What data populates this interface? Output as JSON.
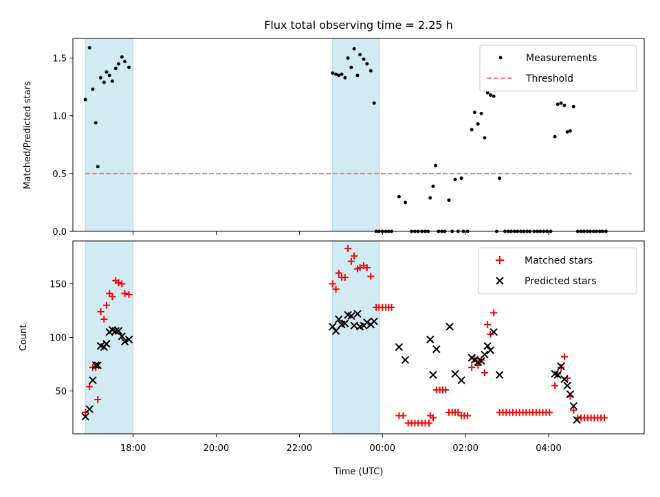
{
  "chart_data": [
    {
      "type": "scatter",
      "title": "Flux total observing time = 2.25 h",
      "xlabel": "",
      "ylabel": "Matched/Predicted stars",
      "xlim": [
        16.55,
        30.3
      ],
      "ylim": [
        0.0,
        1.67
      ],
      "yticks": [
        0.0,
        0.5,
        1.0,
        1.5
      ],
      "ytick_labels": [
        "0.0",
        "0.5",
        "1.0",
        "1.5"
      ],
      "threshold": {
        "name": "Threshold",
        "value": 0.5,
        "x_range": [
          16.85,
          30.0
        ],
        "color": "#f08080"
      },
      "shaded_regions": [
        [
          16.85,
          18.0
        ],
        [
          22.8,
          23.93
        ]
      ],
      "shade_color": "#add8e6",
      "legend": [
        {
          "name": "Measurements",
          "marker": "dot",
          "color": "#000000"
        },
        {
          "name": "Threshold",
          "marker": "dashed-line",
          "color": "#f08080"
        }
      ],
      "series": [
        {
          "name": "Measurements",
          "color": "#000000",
          "points": [
            [
              16.85,
              1.14
            ],
            [
              16.95,
              1.59
            ],
            [
              17.03,
              1.23
            ],
            [
              17.1,
              0.94
            ],
            [
              17.15,
              0.56
            ],
            [
              17.22,
              1.33
            ],
            [
              17.3,
              1.29
            ],
            [
              17.36,
              1.38
            ],
            [
              17.43,
              1.35
            ],
            [
              17.5,
              1.3
            ],
            [
              17.58,
              1.41
            ],
            [
              17.65,
              1.45
            ],
            [
              17.73,
              1.51
            ],
            [
              17.8,
              1.47
            ],
            [
              17.9,
              1.42
            ],
            [
              22.8,
              1.37
            ],
            [
              22.88,
              1.36
            ],
            [
              22.95,
              1.35
            ],
            [
              23.02,
              1.36
            ],
            [
              23.1,
              1.33
            ],
            [
              23.17,
              1.5
            ],
            [
              23.25,
              1.42
            ],
            [
              23.32,
              1.58
            ],
            [
              23.4,
              1.35
            ],
            [
              23.46,
              1.53
            ],
            [
              23.55,
              1.49
            ],
            [
              23.63,
              1.45
            ],
            [
              23.72,
              1.39
            ],
            [
              23.8,
              1.11
            ],
            [
              23.85,
              0.0
            ],
            [
              23.92,
              0.0
            ],
            [
              24.0,
              0.0
            ],
            [
              24.08,
              0.0
            ],
            [
              24.15,
              0.0
            ],
            [
              24.22,
              0.0
            ],
            [
              24.4,
              0.3
            ],
            [
              24.55,
              0.25
            ],
            [
              24.7,
              0.0
            ],
            [
              24.78,
              0.0
            ],
            [
              24.86,
              0.0
            ],
            [
              24.95,
              0.0
            ],
            [
              25.03,
              0.0
            ],
            [
              25.1,
              0.0
            ],
            [
              25.15,
              0.29
            ],
            [
              25.22,
              0.39
            ],
            [
              25.28,
              0.57
            ],
            [
              25.35,
              0.0
            ],
            [
              25.43,
              0.0
            ],
            [
              25.5,
              0.0
            ],
            [
              25.6,
              0.27
            ],
            [
              25.68,
              0.0
            ],
            [
              25.75,
              0.45
            ],
            [
              25.82,
              0.0
            ],
            [
              25.9,
              0.46
            ],
            [
              25.95,
              0.0
            ],
            [
              26.05,
              0.0
            ],
            [
              26.15,
              0.88
            ],
            [
              26.22,
              1.03
            ],
            [
              26.3,
              0.93
            ],
            [
              26.38,
              1.02
            ],
            [
              26.46,
              0.81
            ],
            [
              26.53,
              1.2
            ],
            [
              26.6,
              1.18
            ],
            [
              26.68,
              1.17
            ],
            [
              26.75,
              0.0
            ],
            [
              26.82,
              0.46
            ],
            [
              26.95,
              0.0
            ],
            [
              27.03,
              0.0
            ],
            [
              27.1,
              0.0
            ],
            [
              27.18,
              0.0
            ],
            [
              27.25,
              0.0
            ],
            [
              27.33,
              0.0
            ],
            [
              27.4,
              0.0
            ],
            [
              27.48,
              0.0
            ],
            [
              27.55,
              0.0
            ],
            [
              27.65,
              0.0
            ],
            [
              27.73,
              0.0
            ],
            [
              27.8,
              0.0
            ],
            [
              27.88,
              0.0
            ],
            [
              27.96,
              0.0
            ],
            [
              28.05,
              0.0
            ],
            [
              28.15,
              0.82
            ],
            [
              28.22,
              1.1
            ],
            [
              28.3,
              1.11
            ],
            [
              28.38,
              1.09
            ],
            [
              28.45,
              0.86
            ],
            [
              28.52,
              0.87
            ],
            [
              28.6,
              1.08
            ],
            [
              28.7,
              0.0
            ],
            [
              28.78,
              0.0
            ],
            [
              28.85,
              0.0
            ],
            [
              28.93,
              0.0
            ],
            [
              29.0,
              0.0
            ],
            [
              29.08,
              0.0
            ],
            [
              29.15,
              0.0
            ],
            [
              29.23,
              0.0
            ],
            [
              29.3,
              0.0
            ],
            [
              29.38,
              0.0
            ]
          ]
        }
      ]
    },
    {
      "type": "scatter",
      "title": "",
      "xlabel": "Time (UTC)",
      "ylabel": "Count",
      "xlim": [
        16.55,
        30.3
      ],
      "ylim": [
        10,
        190
      ],
      "xticks": [
        18,
        20,
        22,
        24,
        26,
        28
      ],
      "xtick_labels": [
        "18:00",
        "20:00",
        "22:00",
        "00:00",
        "02:00",
        "04:00"
      ],
      "yticks": [
        50,
        100,
        150
      ],
      "ytick_labels": [
        "50",
        "100",
        "150"
      ],
      "shaded_regions": [
        [
          16.85,
          18.0
        ],
        [
          22.8,
          23.93
        ]
      ],
      "shade_color": "#add8e6",
      "legend": [
        {
          "name": "Matched stars",
          "marker": "plus",
          "color": "#ff0000"
        },
        {
          "name": "Predicted stars",
          "marker": "x",
          "color": "#000000"
        }
      ],
      "series": [
        {
          "name": "Matched stars",
          "marker": "plus",
          "color": "#ff0000",
          "points": [
            [
              16.85,
              30
            ],
            [
              16.95,
              54
            ],
            [
              17.03,
              72
            ],
            [
              17.1,
              72
            ],
            [
              17.15,
              42
            ],
            [
              17.22,
              124
            ],
            [
              17.3,
              117
            ],
            [
              17.36,
              130
            ],
            [
              17.43,
              141
            ],
            [
              17.5,
              138
            ],
            [
              17.58,
              153
            ],
            [
              17.65,
              151
            ],
            [
              17.73,
              150
            ],
            [
              17.8,
              141
            ],
            [
              17.9,
              140
            ],
            [
              22.8,
              150
            ],
            [
              22.88,
              145
            ],
            [
              22.95,
              160
            ],
            [
              23.02,
              156
            ],
            [
              23.1,
              156
            ],
            [
              23.17,
              183
            ],
            [
              23.25,
              171
            ],
            [
              23.32,
              176
            ],
            [
              23.4,
              164
            ],
            [
              23.46,
              165
            ],
            [
              23.55,
              167
            ],
            [
              23.63,
              165
            ],
            [
              23.72,
              157
            ],
            [
              23.85,
              128
            ],
            [
              23.92,
              128
            ],
            [
              24.0,
              128
            ],
            [
              24.08,
              128
            ],
            [
              24.15,
              128
            ],
            [
              24.22,
              128
            ],
            [
              24.4,
              27
            ],
            [
              24.5,
              27
            ],
            [
              24.62,
              20
            ],
            [
              24.7,
              20
            ],
            [
              24.78,
              20
            ],
            [
              24.86,
              20
            ],
            [
              24.95,
              20
            ],
            [
              25.03,
              20
            ],
            [
              25.12,
              20
            ],
            [
              25.15,
              27
            ],
            [
              25.22,
              25
            ],
            [
              25.3,
              51
            ],
            [
              25.38,
              51
            ],
            [
              25.45,
              51
            ],
            [
              25.52,
              51
            ],
            [
              25.6,
              30
            ],
            [
              25.68,
              30
            ],
            [
              25.75,
              30
            ],
            [
              25.82,
              30
            ],
            [
              25.9,
              27
            ],
            [
              25.97,
              27
            ],
            [
              26.05,
              27
            ],
            [
              26.15,
              72
            ],
            [
              26.22,
              80
            ],
            [
              26.3,
              74
            ],
            [
              26.38,
              79
            ],
            [
              26.46,
              67
            ],
            [
              26.53,
              112
            ],
            [
              26.6,
              103
            ],
            [
              26.68,
              123
            ],
            [
              26.82,
              30
            ],
            [
              26.9,
              30
            ],
            [
              26.98,
              30
            ],
            [
              27.06,
              30
            ],
            [
              27.14,
              30
            ],
            [
              27.22,
              30
            ],
            [
              27.3,
              30
            ],
            [
              27.38,
              30
            ],
            [
              27.46,
              30
            ],
            [
              27.54,
              30
            ],
            [
              27.62,
              30
            ],
            [
              27.7,
              30
            ],
            [
              27.78,
              30
            ],
            [
              27.86,
              30
            ],
            [
              27.94,
              30
            ],
            [
              28.02,
              30
            ],
            [
              28.15,
              55
            ],
            [
              28.22,
              66
            ],
            [
              28.3,
              72
            ],
            [
              28.38,
              82
            ],
            [
              28.45,
              62
            ],
            [
              28.52,
              45
            ],
            [
              28.6,
              32
            ],
            [
              28.7,
              25
            ],
            [
              28.78,
              25
            ],
            [
              28.86,
              25
            ],
            [
              28.94,
              25
            ],
            [
              29.02,
              25
            ],
            [
              29.1,
              25
            ],
            [
              29.18,
              25
            ],
            [
              29.26,
              25
            ],
            [
              29.34,
              25
            ]
          ]
        },
        {
          "name": "Predicted stars",
          "marker": "x",
          "color": "#000000",
          "points": [
            [
              16.85,
              26
            ],
            [
              16.95,
              33
            ],
            [
              17.03,
              60
            ],
            [
              17.1,
              74
            ],
            [
              17.15,
              74
            ],
            [
              17.22,
              92
            ],
            [
              17.3,
              91
            ],
            [
              17.36,
              94
            ],
            [
              17.43,
              105
            ],
            [
              17.5,
              107
            ],
            [
              17.58,
              106
            ],
            [
              17.65,
              106
            ],
            [
              17.73,
              101
            ],
            [
              17.8,
              96
            ],
            [
              17.9,
              98
            ],
            [
              22.8,
              110
            ],
            [
              22.88,
              106
            ],
            [
              22.95,
              117
            ],
            [
              23.02,
              112
            ],
            [
              23.1,
              113
            ],
            [
              23.17,
              121
            ],
            [
              23.25,
              120
            ],
            [
              23.32,
              111
            ],
            [
              23.4,
              122
            ],
            [
              23.46,
              110
            ],
            [
              23.55,
              111
            ],
            [
              23.63,
              114
            ],
            [
              23.72,
              112
            ],
            [
              23.8,
              115
            ],
            [
              24.4,
              91
            ],
            [
              24.55,
              79
            ],
            [
              25.15,
              98
            ],
            [
              25.22,
              65
            ],
            [
              25.3,
              89
            ],
            [
              25.62,
              110
            ],
            [
              25.75,
              66
            ],
            [
              25.9,
              60
            ],
            [
              26.15,
              81
            ],
            [
              26.22,
              79
            ],
            [
              26.3,
              77
            ],
            [
              26.38,
              78
            ],
            [
              26.46,
              84
            ],
            [
              26.53,
              92
            ],
            [
              26.6,
              88
            ],
            [
              26.68,
              105
            ],
            [
              26.82,
              65
            ],
            [
              28.15,
              66
            ],
            [
              28.22,
              65
            ],
            [
              28.3,
              73
            ],
            [
              28.38,
              61
            ],
            [
              28.45,
              55
            ],
            [
              28.52,
              47
            ],
            [
              28.6,
              36
            ],
            [
              28.68,
              23
            ]
          ]
        }
      ]
    }
  ]
}
